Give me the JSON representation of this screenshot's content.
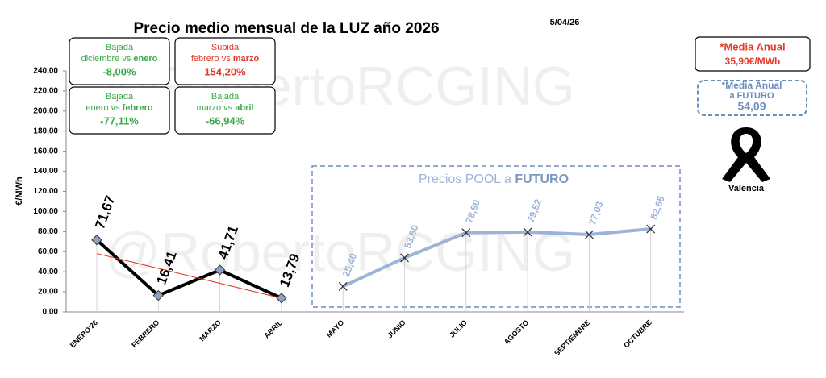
{
  "chart_data": {
    "type": "line",
    "title": "Precio medio mensual de la LUZ año 2026",
    "date": "5/04/26",
    "watermark": "@RobertoRCGING",
    "ylabel": "€/MWh",
    "categories": [
      "ENERO'26",
      "FEBRERO",
      "MARZO",
      "ABRIL",
      "MAYO",
      "JUNIO",
      "JULIO",
      "AGOSTO",
      "SEPTIEMBRE",
      "OCTUBRE"
    ],
    "series": [
      {
        "color": "#000000",
        "marker_color": "#8ca0c8",
        "values": [
          71.67,
          16.41,
          41.71,
          13.79,
          null,
          null,
          null,
          null,
          null,
          null
        ],
        "value_labels": [
          "71,67",
          "16,41",
          "41,71",
          "13,79",
          null,
          null,
          null,
          null,
          null,
          null
        ]
      },
      {
        "color": "#9db3d8",
        "values": [
          null,
          null,
          null,
          null,
          25.4,
          53.8,
          78.9,
          79.52,
          77.03,
          82.65
        ],
        "value_labels": [
          null,
          null,
          null,
          null,
          "25,40",
          "53,80",
          "78,90",
          "79,52",
          "77,03",
          "82,65"
        ]
      }
    ],
    "trendline": {
      "color": "#e03020",
      "values": [
        58.14,
        43.31,
        28.48,
        13.65,
        null,
        null,
        null,
        null,
        null,
        null
      ]
    },
    "ylim": [
      0,
      240
    ],
    "yticks": [
      {
        "value": 0,
        "label": "0,00"
      },
      {
        "value": 20,
        "label": "20,00"
      },
      {
        "value": 40,
        "label": "40,00"
      },
      {
        "value": 60,
        "label": "60,00"
      },
      {
        "value": 80,
        "label": "80,00"
      },
      {
        "value": 100,
        "label": "100,00"
      },
      {
        "value": 120,
        "label": "120,00"
      },
      {
        "value": 140,
        "label": "140,00"
      },
      {
        "value": 160,
        "label": "160,00"
      },
      {
        "value": 180,
        "label": "180,00"
      },
      {
        "value": 200,
        "label": "200,00"
      },
      {
        "value": 220,
        "label": "220,00"
      },
      {
        "value": 240,
        "label": "240,00"
      }
    ],
    "futuro_box": {
      "text": "Precios POOL a ",
      "bold": "FUTURO"
    },
    "boxes": [
      {
        "line1": "Bajada",
        "line2": "diciembre vs ",
        "bold": "enero",
        "value": "-8,00%",
        "color": "#3aa84a"
      },
      {
        "line1": "Subida",
        "line2": "febrero vs ",
        "bold": "marzo",
        "value": "154,20%",
        "color": "#e53a2a"
      },
      {
        "line1": "Bajada",
        "line2": "enero vs ",
        "bold": "febrero",
        "value": "-77,11%",
        "color": "#3aa84a"
      },
      {
        "line1": "Bajada",
        "line2": "marzo vs ",
        "bold": "abril",
        "value": "-66,94%",
        "color": "#3aa84a"
      }
    ],
    "media_anual": {
      "title": "*Media Anual",
      "value": "35,90€/MWh"
    },
    "media_futuro": {
      "title": "*Media Anual",
      "subtitle": "a FUTURO",
      "value": "54,09"
    },
    "ribbon_label": "Valencia"
  }
}
